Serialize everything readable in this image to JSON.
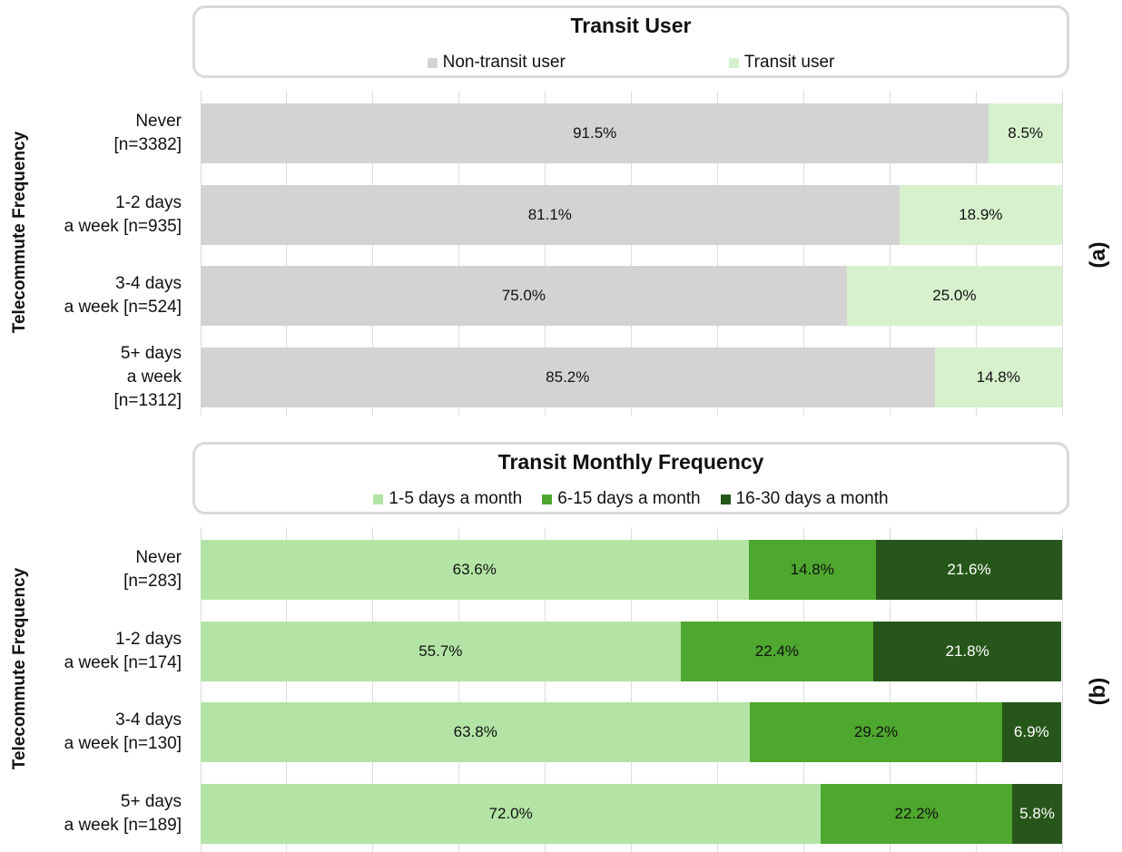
{
  "chart_data": [
    {
      "type": "stacked-bar-horizontal",
      "title": "Transit User",
      "y_axis_label": "Telecommute Frequency",
      "panel_label": "(a)",
      "categories": [
        "Never\n[n=3382]",
        "1-2 days\na week [n=935]",
        "3-4 days\na week [n=524]",
        "5+ days\na week\n[n=1312]"
      ],
      "xlim": [
        0,
        100
      ],
      "xticks": [
        0,
        10,
        20,
        30,
        40,
        50,
        60,
        70,
        80,
        90,
        100
      ],
      "grid": true,
      "legend": "top",
      "series": [
        {
          "name": "Non-transit user",
          "color": "#d3d3d3",
          "values": [
            91.5,
            81.1,
            75.0,
            85.2
          ],
          "value_labels": [
            "91.5%",
            "81.1%",
            "75.0%",
            "85.2%"
          ]
        },
        {
          "name": "Transit user",
          "color": "#d7f1cd",
          "values": [
            8.5,
            18.9,
            25.0,
            14.8
          ],
          "value_labels": [
            "8.5%",
            "18.9%",
            "25.0%",
            "14.8%"
          ]
        }
      ]
    },
    {
      "type": "stacked-bar-horizontal",
      "title": "Transit Monthly Frequency",
      "y_axis_label": "Telecommute Frequency",
      "panel_label": "(b)",
      "categories": [
        "Never\n[n=283]",
        "1-2 days\na week [n=174]",
        "3-4 days\na week [n=130]",
        "5+ days\na week [n=189]"
      ],
      "xlim": [
        0,
        100
      ],
      "xticks": [
        0,
        10,
        20,
        30,
        40,
        50,
        60,
        70,
        80,
        90,
        100
      ],
      "grid": true,
      "legend": "top",
      "series": [
        {
          "name": "1-5 days a month",
          "color": "#b3e4a5",
          "values": [
            63.6,
            55.7,
            63.8,
            72.0
          ],
          "value_labels": [
            "63.6%",
            "55.7%",
            "63.8%",
            "72.0%"
          ]
        },
        {
          "name": "6-15 days a month",
          "color": "#4ea72e",
          "values": [
            14.8,
            22.4,
            29.2,
            22.2
          ],
          "value_labels": [
            "14.8%",
            "22.4%",
            "29.2%",
            "22.2%"
          ]
        },
        {
          "name": "16-30 days a month",
          "color": "#27561a",
          "values": [
            21.6,
            21.8,
            6.9,
            5.8
          ],
          "value_labels": [
            "21.6%",
            "21.8%",
            "6.9%",
            "5.8%"
          ]
        }
      ]
    }
  ]
}
